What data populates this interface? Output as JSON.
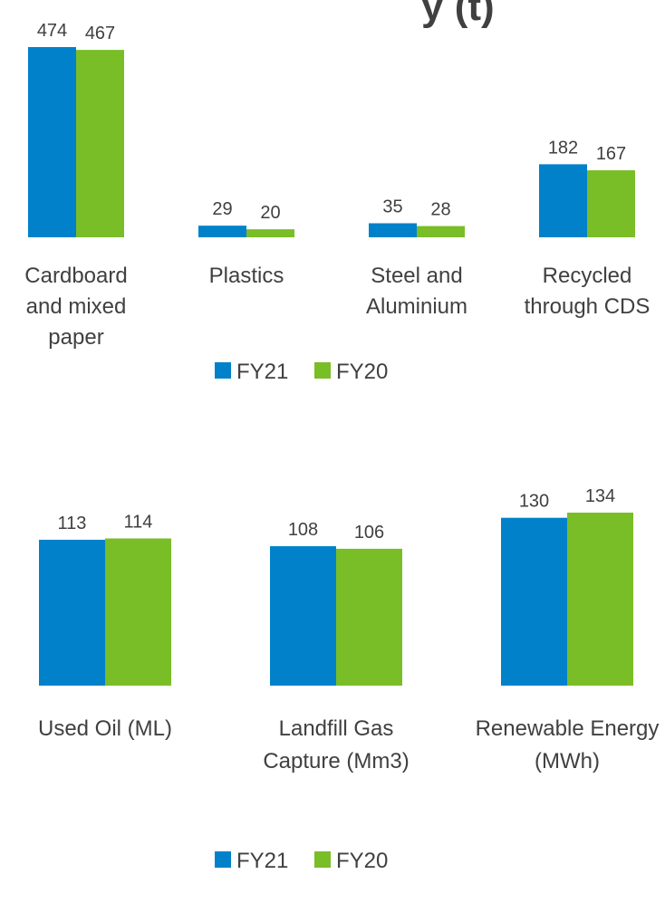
{
  "title_fragment": "y (t)",
  "colors": {
    "FY21": "#0081c9",
    "FY20": "#79bd27"
  },
  "chart_data": [
    {
      "type": "bar",
      "categories": [
        [
          "Cardboard",
          "and mixed",
          "paper"
        ],
        [
          "Plastics"
        ],
        [
          "Steel and",
          "Aluminium"
        ],
        [
          "Recycled",
          "through CDS"
        ]
      ],
      "series": [
        {
          "name": "FY21",
          "values": [
            474,
            29,
            35,
            182
          ]
        },
        {
          "name": "FY20",
          "values": [
            467,
            20,
            28,
            167
          ]
        }
      ],
      "legend": "bottom"
    },
    {
      "type": "bar",
      "categories": [
        [
          "Used Oil (ML)"
        ],
        [
          "Landfill Gas",
          "Capture (Mm3)"
        ],
        [
          "Renewable Energy",
          "(MWh)"
        ]
      ],
      "series": [
        {
          "name": "FY21",
          "values": [
            113,
            108,
            130
          ]
        },
        {
          "name": "FY20",
          "values": [
            114,
            106,
            134
          ]
        }
      ],
      "legend": "bottom"
    }
  ]
}
